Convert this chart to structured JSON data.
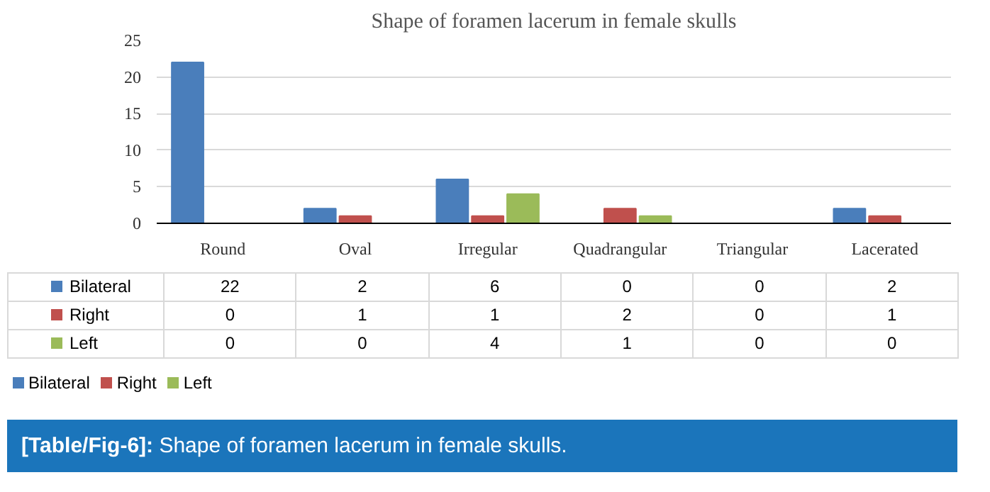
{
  "chart_data": {
    "type": "bar",
    "title": "Shape of foramen lacerum in female skulls",
    "categories": [
      "Round",
      "Oval",
      "Irregular",
      "Quadrangular",
      "Triangular",
      "Lacerated"
    ],
    "series": [
      {
        "name": "Bilateral",
        "color": "#4a7ebb",
        "values": [
          22,
          2,
          6,
          0,
          0,
          2
        ]
      },
      {
        "name": "Right",
        "color": "#c0504d",
        "values": [
          0,
          1,
          1,
          2,
          0,
          1
        ]
      },
      {
        "name": "Left",
        "color": "#9bbb59",
        "values": [
          0,
          0,
          4,
          1,
          0,
          0
        ]
      }
    ],
    "ylim": [
      0,
      25
    ],
    "yticks": [
      0,
      5,
      10,
      15,
      20,
      25
    ],
    "grid": "y",
    "legend": "bottom",
    "data_labels": true,
    "annotations": [
      "[Table/Fig-6]: Shape of foramen lacerum in female skulls."
    ]
  }
}
